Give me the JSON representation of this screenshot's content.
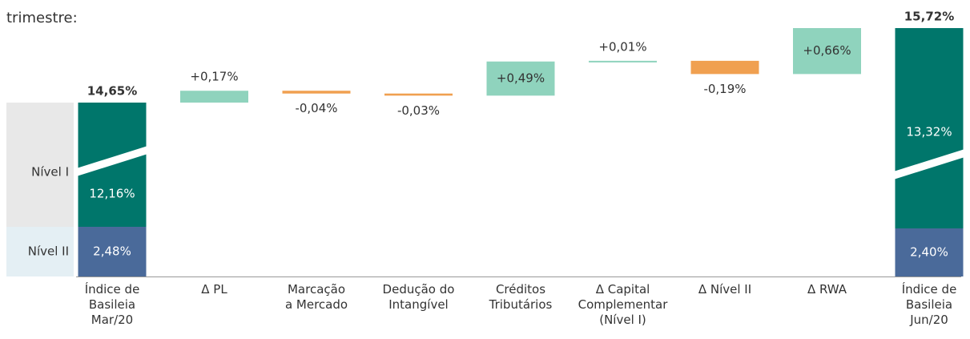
{
  "chart_data": {
    "type": "waterfall",
    "title": "trimestre:",
    "categories": [
      "Índice de\nBasileia\nMar/20",
      "Δ PL",
      "Marcação\na Mercado",
      "Dedução do\nIntangível",
      "Créditos\nTributários",
      "Δ Capital\nComplementar\n(Nível I)",
      "Δ Nível II",
      "Δ RWA",
      "Índice de\nBasileia\nJun/20"
    ],
    "values": [
      14.65,
      0.17,
      -0.04,
      -0.03,
      0.49,
      0.01,
      -0.19,
      0.66,
      15.72
    ],
    "value_labels": [
      "14,65%",
      "+0,17%",
      "-0,04%",
      "-0,03%",
      "+0,49%",
      "+0,01%",
      "-0,19%",
      "+0,66%",
      "15,72%"
    ],
    "series": [
      {
        "name": "Nível I",
        "color": "#00766b",
        "values": [
          12.16,
          null,
          null,
          null,
          null,
          null,
          null,
          null,
          13.32
        ],
        "value_labels": [
          "12,16%",
          null,
          null,
          null,
          null,
          null,
          null,
          null,
          "13,32%"
        ]
      },
      {
        "name": "Nível II",
        "color": "#4a6a9a",
        "values": [
          2.48,
          null,
          null,
          null,
          null,
          null,
          null,
          null,
          2.4
        ],
        "value_labels": [
          "2,48%",
          null,
          null,
          null,
          null,
          null,
          null,
          null,
          "2,40%"
        ]
      }
    ],
    "increase_color": "#8fd3bd",
    "decrease_color": "#f0a050",
    "ylim": [
      13.2,
      15.9
    ]
  }
}
